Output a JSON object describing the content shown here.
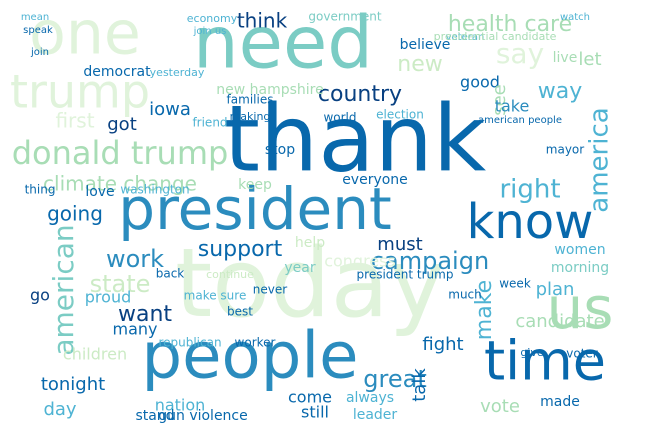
{
  "words": [
    "thank",
    "need",
    "today",
    "people",
    "president",
    "time",
    "know",
    "one",
    "trump",
    "donald trump",
    "us",
    "america",
    "health care",
    "say",
    "country",
    "think",
    "government",
    "believe",
    "new",
    "good",
    "way",
    "see",
    "take",
    "let",
    "live",
    "democrat",
    "yesterday",
    "economy",
    "join us",
    "first",
    "got",
    "iowa",
    "climate change",
    "new hampshire",
    "going",
    "love",
    "thing",
    "washington",
    "work",
    "state",
    "american",
    "want",
    "many",
    "proud",
    "go",
    "support",
    "campaign",
    "right",
    "must",
    "everyone",
    "stop",
    "help",
    "year",
    "congress",
    "president trump",
    "plan",
    "make",
    "great",
    "fight",
    "talk",
    "candidate",
    "women",
    "morning",
    "week",
    "much",
    "tonight",
    "day",
    "children",
    "nation",
    "stand",
    "gun violence",
    "come",
    "still",
    "always",
    "leader",
    "vote",
    "made",
    "republican",
    "worker",
    "best",
    "back",
    "make sure",
    "never",
    "continue",
    "keep",
    "world",
    "mayor",
    "election",
    "voter",
    "give",
    "american people",
    "families",
    "making",
    "friend",
    "watch",
    "veteran",
    "presidential candidate",
    "mean",
    "speak",
    "join"
  ]
}
